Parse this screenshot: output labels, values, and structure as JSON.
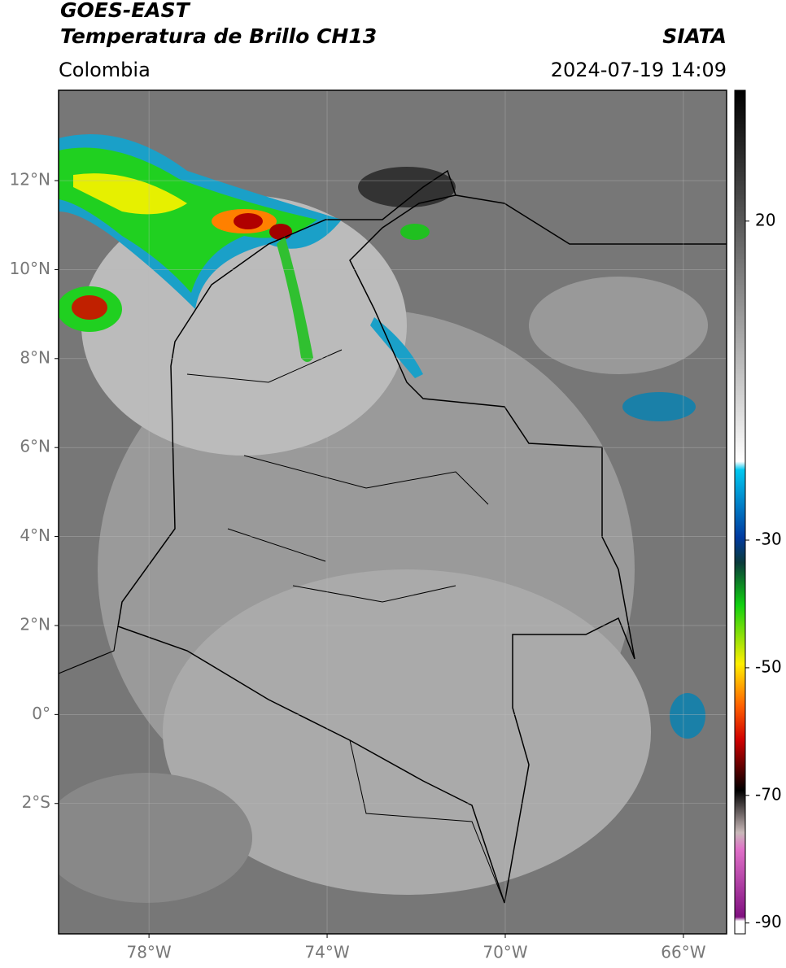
{
  "header": {
    "title": "GOES-EAST",
    "subtitle": "Temperatura de Brillo CH13",
    "source": "SIATA",
    "region": "Colombia",
    "timestamp": "2024-07-19 14:09"
  },
  "map": {
    "xlim": [
      -80.03,
      -65.03
    ],
    "ylim": [
      -4.93,
      14.03
    ],
    "yticks": [
      {
        "value": 12,
        "label": "12°N"
      },
      {
        "value": 10,
        "label": "10°N"
      },
      {
        "value": 8,
        "label": "8°N"
      },
      {
        "value": 6,
        "label": "6°N"
      },
      {
        "value": 4,
        "label": "4°N"
      },
      {
        "value": 2,
        "label": "2°N"
      },
      {
        "value": 0,
        "label": "0°"
      },
      {
        "value": -2,
        "label": "2°S"
      }
    ],
    "xticks": [
      {
        "value": -78,
        "label": "78°W"
      },
      {
        "value": -74,
        "label": "74°W"
      },
      {
        "value": -70,
        "label": "70°W"
      },
      {
        "value": -66,
        "label": "66°W"
      }
    ],
    "grid": true
  },
  "colorbar": {
    "lim": [
      -91.7,
      40.5
    ],
    "ticks": [
      20,
      -30,
      -50,
      -70,
      -90
    ]
  }
}
